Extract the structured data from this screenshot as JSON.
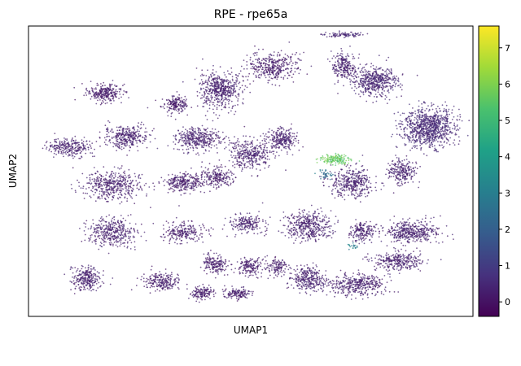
{
  "chart_data": {
    "type": "scatter",
    "title": "RPE - rpe65a",
    "xlabel": "UMAP1",
    "ylabel": "UMAP2",
    "x_ticks": [],
    "y_ticks": [],
    "xlim": [
      0,
      100
    ],
    "ylim": [
      0,
      100
    ],
    "grid": false,
    "colorbar": {
      "label": "",
      "colormap": "viridis",
      "range": [
        -0.4,
        7.6
      ],
      "ticks": [
        0,
        1,
        2,
        3,
        4,
        5,
        6,
        7
      ],
      "tick_labels": [
        "0",
        "1",
        "2",
        "3",
        "4",
        "5",
        "6",
        "7"
      ]
    },
    "clusters": [
      {
        "x": 17,
        "y": 77,
        "sx": 3.5,
        "sy": 2.8,
        "n": 260,
        "value": 0.2
      },
      {
        "x": 33,
        "y": 73,
        "sx": 2.8,
        "sy": 2.5,
        "n": 180,
        "value": 0.2
      },
      {
        "x": 43,
        "y": 78,
        "sx": 4.5,
        "sy": 5.5,
        "n": 520,
        "value": 0.3
      },
      {
        "x": 55,
        "y": 86,
        "sx": 5.0,
        "sy": 4.5,
        "n": 380,
        "value": 0.2
      },
      {
        "x": 71,
        "y": 86,
        "sx": 2.5,
        "sy": 4.5,
        "n": 220,
        "value": 0.3
      },
      {
        "x": 78,
        "y": 81,
        "sx": 4.5,
        "sy": 4.5,
        "n": 500,
        "value": 0.4
      },
      {
        "x": 71,
        "y": 97,
        "sx": 4.0,
        "sy": 0.9,
        "n": 90,
        "value": 0.4
      },
      {
        "x": 90,
        "y": 65,
        "sx": 5.5,
        "sy": 6.0,
        "n": 900,
        "value": 0.5
      },
      {
        "x": 9,
        "y": 58,
        "sx": 4.5,
        "sy": 3.0,
        "n": 260,
        "value": 0.3
      },
      {
        "x": 22,
        "y": 62,
        "sx": 4.5,
        "sy": 3.5,
        "n": 330,
        "value": 0.3
      },
      {
        "x": 38,
        "y": 61,
        "sx": 4.5,
        "sy": 3.5,
        "n": 360,
        "value": 0.3
      },
      {
        "x": 50,
        "y": 56,
        "sx": 4.5,
        "sy": 4.5,
        "n": 360,
        "value": 0.3
      },
      {
        "x": 57,
        "y": 61,
        "sx": 3.0,
        "sy": 3.5,
        "n": 250,
        "value": 0.3
      },
      {
        "x": 19,
        "y": 45,
        "sx": 6.0,
        "sy": 4.5,
        "n": 440,
        "value": 0.3
      },
      {
        "x": 35,
        "y": 46,
        "sx": 3.5,
        "sy": 3.0,
        "n": 260,
        "value": 0.2
      },
      {
        "x": 42,
        "y": 48,
        "sx": 4.0,
        "sy": 3.0,
        "n": 220,
        "value": 0.2
      },
      {
        "x": 73,
        "y": 46,
        "sx": 4.5,
        "sy": 4.5,
        "n": 380,
        "value": 0.3
      },
      {
        "x": 84,
        "y": 50,
        "sx": 3.0,
        "sy": 4.0,
        "n": 230,
        "value": 0.3
      },
      {
        "x": 19,
        "y": 29,
        "sx": 5.0,
        "sy": 4.5,
        "n": 380,
        "value": 0.3
      },
      {
        "x": 35,
        "y": 29,
        "sx": 4.0,
        "sy": 3.0,
        "n": 220,
        "value": 0.2
      },
      {
        "x": 49,
        "y": 32,
        "sx": 3.5,
        "sy": 3.0,
        "n": 200,
        "value": 0.3
      },
      {
        "x": 63,
        "y": 31,
        "sx": 4.5,
        "sy": 4.5,
        "n": 420,
        "value": 0.3
      },
      {
        "x": 75,
        "y": 29,
        "sx": 2.5,
        "sy": 3.0,
        "n": 180,
        "value": 0.3
      },
      {
        "x": 86,
        "y": 29,
        "sx": 6.0,
        "sy": 3.5,
        "n": 420,
        "value": 0.3
      },
      {
        "x": 13,
        "y": 13,
        "sx": 3.0,
        "sy": 3.5,
        "n": 260,
        "value": 0.3
      },
      {
        "x": 30,
        "y": 12,
        "sx": 4.0,
        "sy": 3.0,
        "n": 220,
        "value": 0.2
      },
      {
        "x": 42,
        "y": 18,
        "sx": 2.5,
        "sy": 3.0,
        "n": 180,
        "value": 0.2
      },
      {
        "x": 50,
        "y": 17,
        "sx": 2.5,
        "sy": 3.0,
        "n": 160,
        "value": 0.2
      },
      {
        "x": 56,
        "y": 17,
        "sx": 2.0,
        "sy": 2.5,
        "n": 120,
        "value": 0.2
      },
      {
        "x": 39,
        "y": 8,
        "sx": 2.5,
        "sy": 2.0,
        "n": 140,
        "value": 0.2
      },
      {
        "x": 47,
        "y": 8,
        "sx": 2.5,
        "sy": 2.0,
        "n": 140,
        "value": 0.2
      },
      {
        "x": 63,
        "y": 13,
        "sx": 4.0,
        "sy": 3.5,
        "n": 300,
        "value": 0.3
      },
      {
        "x": 74,
        "y": 11,
        "sx": 5.5,
        "sy": 3.5,
        "n": 380,
        "value": 0.3
      },
      {
        "x": 83,
        "y": 19,
        "sx": 5.0,
        "sy": 3.0,
        "n": 300,
        "value": 0.3
      },
      {
        "x": 69,
        "y": 54,
        "sx": 3.0,
        "sy": 1.6,
        "n": 160,
        "value": 5.6
      },
      {
        "x": 67,
        "y": 49,
        "sx": 1.5,
        "sy": 1.5,
        "n": 40,
        "value": 2.5
      },
      {
        "x": 73,
        "y": 24,
        "sx": 1.0,
        "sy": 1.0,
        "n": 20,
        "value": 3.0
      }
    ]
  }
}
